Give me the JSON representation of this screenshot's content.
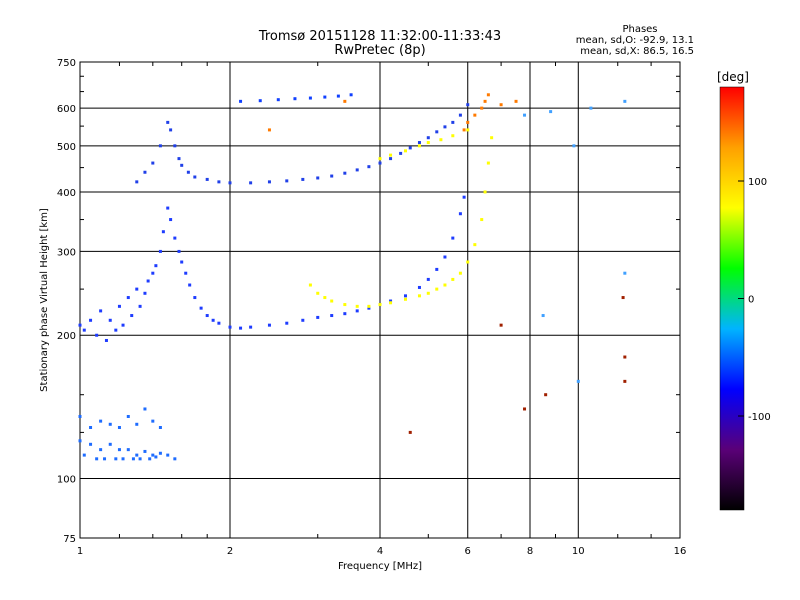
{
  "chart_data": {
    "type": "scatter",
    "title": "Tromsø 20151128 11:32:00-11:33:43",
    "subtitle": "RwPretec (8p)",
    "xlabel": "Frequency [MHz]",
    "ylabel": "Stationary phase Virtual Height [km]",
    "x_scale": "log",
    "y_scale": "log",
    "xlim": [
      1,
      16
    ],
    "ylim": [
      75,
      750
    ],
    "x_ticks": [
      1,
      2,
      4,
      6,
      8,
      10,
      16
    ],
    "y_ticks": [
      75,
      100,
      200,
      300,
      400,
      500,
      600,
      750
    ],
    "grid": true,
    "legend": {
      "title": "Phases",
      "lines": [
        "mean, sd,O: -92.9, 13.1",
        "mean, sd,X:  86.5, 16.5"
      ]
    },
    "colorbar": {
      "label": "[deg]",
      "range": [
        -180,
        180
      ],
      "ticks": [
        -100,
        0,
        100
      ],
      "colors": [
        "#000000",
        "#5a0078",
        "#0000ff",
        "#00b4ff",
        "#00ff00",
        "#ffff00",
        "#ffa000",
        "#ff0000"
      ]
    },
    "series": [
      {
        "color": "#1e3cff",
        "points": [
          [
            1.0,
            210
          ],
          [
            1.02,
            205
          ],
          [
            1.05,
            215
          ],
          [
            1.08,
            200
          ],
          [
            1.1,
            225
          ],
          [
            1.13,
            195
          ],
          [
            1.15,
            215
          ],
          [
            1.18,
            205
          ],
          [
            1.2,
            230
          ],
          [
            1.22,
            210
          ],
          [
            1.25,
            240
          ],
          [
            1.27,
            220
          ],
          [
            1.3,
            250
          ],
          [
            1.32,
            230
          ],
          [
            1.35,
            245
          ],
          [
            1.37,
            260
          ],
          [
            1.4,
            270
          ],
          [
            1.42,
            280
          ],
          [
            1.45,
            300
          ],
          [
            1.47,
            330
          ],
          [
            1.5,
            370
          ],
          [
            1.52,
            350
          ],
          [
            1.55,
            320
          ],
          [
            1.58,
            300
          ],
          [
            1.6,
            285
          ],
          [
            1.63,
            270
          ],
          [
            1.66,
            255
          ],
          [
            1.7,
            240
          ],
          [
            1.75,
            228
          ],
          [
            1.8,
            220
          ],
          [
            1.85,
            215
          ],
          [
            1.9,
            212
          ],
          [
            2.0,
            208
          ],
          [
            2.1,
            207
          ],
          [
            2.2,
            208
          ],
          [
            2.4,
            210
          ],
          [
            2.6,
            212
          ],
          [
            2.8,
            215
          ],
          [
            3.0,
            218
          ],
          [
            3.2,
            220
          ],
          [
            3.4,
            222
          ],
          [
            3.6,
            225
          ],
          [
            3.8,
            228
          ],
          [
            4.0,
            232
          ],
          [
            4.2,
            236
          ],
          [
            4.5,
            242
          ],
          [
            4.8,
            252
          ],
          [
            5.0,
            262
          ],
          [
            5.2,
            275
          ],
          [
            5.4,
            292
          ],
          [
            5.6,
            320
          ],
          [
            5.8,
            360
          ],
          [
            5.9,
            390
          ]
        ]
      },
      {
        "color": "#2040e8",
        "points": [
          [
            1.3,
            420
          ],
          [
            1.35,
            440
          ],
          [
            1.4,
            460
          ],
          [
            1.45,
            500
          ],
          [
            1.5,
            560
          ],
          [
            1.52,
            540
          ],
          [
            1.55,
            500
          ],
          [
            1.58,
            470
          ],
          [
            1.6,
            455
          ],
          [
            1.65,
            440
          ],
          [
            1.7,
            430
          ],
          [
            1.8,
            425
          ],
          [
            1.9,
            420
          ],
          [
            2.0,
            418
          ],
          [
            2.2,
            418
          ],
          [
            2.4,
            420
          ],
          [
            2.6,
            422
          ],
          [
            2.8,
            425
          ],
          [
            3.0,
            428
          ],
          [
            3.2,
            432
          ],
          [
            3.4,
            438
          ],
          [
            3.6,
            445
          ],
          [
            3.8,
            452
          ],
          [
            4.0,
            460
          ],
          [
            4.2,
            470
          ],
          [
            4.4,
            482
          ],
          [
            4.6,
            495
          ],
          [
            4.8,
            508
          ],
          [
            5.0,
            520
          ],
          [
            5.2,
            535
          ],
          [
            5.4,
            548
          ],
          [
            5.6,
            560
          ],
          [
            5.8,
            580
          ],
          [
            6.0,
            610
          ]
        ]
      },
      {
        "color": "#1e6cff",
        "points": [
          [
            1.0,
            120
          ],
          [
            1.02,
            112
          ],
          [
            1.05,
            118
          ],
          [
            1.08,
            110
          ],
          [
            1.1,
            115
          ],
          [
            1.12,
            110
          ],
          [
            1.15,
            118
          ],
          [
            1.18,
            110
          ],
          [
            1.2,
            115
          ],
          [
            1.22,
            110
          ],
          [
            1.25,
            115
          ],
          [
            1.28,
            110
          ],
          [
            1.3,
            112
          ],
          [
            1.32,
            110
          ],
          [
            1.35,
            114
          ],
          [
            1.38,
            110
          ],
          [
            1.4,
            112
          ],
          [
            1.42,
            111
          ],
          [
            1.45,
            113
          ],
          [
            1.5,
            112
          ],
          [
            1.55,
            110
          ],
          [
            1.0,
            135
          ],
          [
            1.05,
            128
          ],
          [
            1.1,
            132
          ],
          [
            1.15,
            130
          ],
          [
            1.2,
            128
          ],
          [
            1.25,
            135
          ],
          [
            1.3,
            130
          ],
          [
            1.35,
            140
          ],
          [
            1.4,
            132
          ],
          [
            1.45,
            128
          ]
        ]
      },
      {
        "color": "#ffff00",
        "points": [
          [
            2.9,
            255
          ],
          [
            3.0,
            245
          ],
          [
            3.1,
            240
          ],
          [
            3.2,
            236
          ],
          [
            3.4,
            232
          ],
          [
            3.6,
            230
          ],
          [
            3.8,
            230
          ],
          [
            4.0,
            232
          ],
          [
            4.2,
            234
          ],
          [
            4.5,
            238
          ],
          [
            4.8,
            242
          ],
          [
            5.0,
            245
          ],
          [
            5.2,
            250
          ],
          [
            5.4,
            255
          ],
          [
            5.6,
            262
          ],
          [
            5.8,
            270
          ],
          [
            6.0,
            285
          ],
          [
            6.2,
            310
          ],
          [
            6.4,
            350
          ],
          [
            6.5,
            400
          ],
          [
            6.6,
            460
          ],
          [
            6.7,
            520
          ],
          [
            4.0,
            470
          ],
          [
            4.2,
            478
          ],
          [
            4.5,
            488
          ],
          [
            4.8,
            500
          ],
          [
            5.0,
            508
          ],
          [
            5.3,
            515
          ],
          [
            5.6,
            525
          ],
          [
            6.0,
            540
          ]
        ]
      },
      {
        "color": "#ff7a00",
        "points": [
          [
            5.9,
            540
          ],
          [
            6.0,
            560
          ],
          [
            6.2,
            580
          ],
          [
            6.4,
            600
          ],
          [
            6.5,
            620
          ],
          [
            6.6,
            640
          ],
          [
            7.0,
            610
          ],
          [
            7.5,
            620
          ],
          [
            3.4,
            620
          ],
          [
            2.4,
            540
          ]
        ]
      },
      {
        "color": "#1040ff",
        "points": [
          [
            2.1,
            620
          ],
          [
            2.3,
            622
          ],
          [
            2.5,
            625
          ],
          [
            2.7,
            628
          ],
          [
            2.9,
            630
          ],
          [
            3.1,
            633
          ],
          [
            3.3,
            636
          ],
          [
            3.5,
            640
          ]
        ]
      },
      {
        "color": "#40a0ff",
        "points": [
          [
            7.8,
            580
          ],
          [
            8.8,
            590
          ],
          [
            9.8,
            500
          ],
          [
            10.6,
            600
          ],
          [
            12.4,
            270
          ],
          [
            12.4,
            620
          ],
          [
            8.5,
            220
          ],
          [
            10.0,
            160
          ]
        ]
      },
      {
        "color": "#a02000",
        "points": [
          [
            12.3,
            240
          ],
          [
            7.0,
            210
          ],
          [
            12.4,
            180
          ],
          [
            8.6,
            150
          ],
          [
            4.6,
            125
          ],
          [
            7.8,
            140
          ],
          [
            12.4,
            160
          ]
        ]
      }
    ]
  }
}
